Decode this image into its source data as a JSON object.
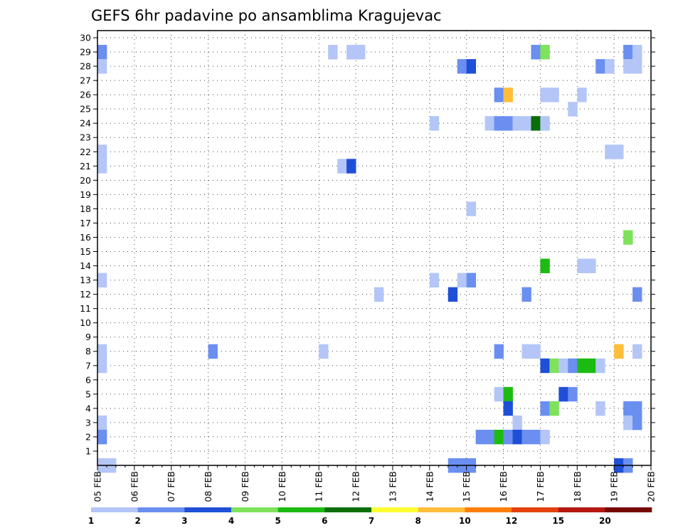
{
  "chart_data": {
    "type": "heatmap",
    "title": "GEFS 6hr padavine po ansamblima Kragujevac",
    "x_tick_labels": [
      "05 FEB",
      "06 FEB",
      "07 FEB",
      "08 FEB",
      "09 FEB",
      "10 FEB",
      "11 FEB",
      "12 FEB",
      "13 FEB",
      "14 FEB",
      "15 FEB",
      "16 FEB",
      "17 FEB",
      "18 FEB",
      "19 FEB",
      "20 FEB"
    ],
    "x_start": "2025-02-05T00",
    "x_step_hours": 6,
    "ylim": [
      0,
      30
    ],
    "y_ticks": [
      1,
      2,
      3,
      4,
      5,
      6,
      7,
      8,
      9,
      10,
      11,
      12,
      13,
      14,
      15,
      16,
      17,
      18,
      19,
      20,
      21,
      22,
      23,
      24,
      25,
      26,
      27,
      28,
      29,
      30
    ],
    "grid": true,
    "colorbar": {
      "levels": [
        "1",
        "2",
        "3",
        "4",
        "5",
        "6",
        "7",
        "8",
        "10",
        "12",
        "15",
        "20"
      ],
      "colors": [
        "#b4c6f7",
        "#6a8ff0",
        "#1f4fd6",
        "#7ee25a",
        "#1dbb12",
        "#0b6e08",
        "#ffff32",
        "#ffbe3a",
        "#ff7e0b",
        "#e5410f",
        "#b41810",
        "#760705"
      ]
    },
    "cells": [
      [
        "2025-02-05T00",
        29,
        1
      ],
      [
        "2025-02-05T00",
        28,
        0
      ],
      [
        "2025-02-05T00",
        22,
        0
      ],
      [
        "2025-02-05T00",
        21,
        0
      ],
      [
        "2025-02-05T00",
        13,
        0
      ],
      [
        "2025-02-05T00",
        8,
        0
      ],
      [
        "2025-02-05T00",
        7,
        0
      ],
      [
        "2025-02-05T00",
        3,
        0
      ],
      [
        "2025-02-05T00",
        2,
        1
      ],
      [
        "2025-02-05T00",
        0,
        0
      ],
      [
        "2025-02-05T06",
        0,
        0
      ],
      [
        "2025-02-08T00",
        8,
        1
      ],
      [
        "2025-02-11T00",
        8,
        0
      ],
      [
        "2025-02-11T06",
        29,
        0
      ],
      [
        "2025-02-11T12",
        21,
        0
      ],
      [
        "2025-02-11T18",
        29,
        0
      ],
      [
        "2025-02-11T18",
        21,
        2
      ],
      [
        "2025-02-12T00",
        29,
        0
      ],
      [
        "2025-02-12T12",
        12,
        0
      ],
      [
        "2025-02-14T00",
        24,
        0
      ],
      [
        "2025-02-14T00",
        13,
        0
      ],
      [
        "2025-02-14T12",
        12,
        2
      ],
      [
        "2025-02-14T12",
        0,
        1
      ],
      [
        "2025-02-14T18",
        28,
        1
      ],
      [
        "2025-02-14T18",
        13,
        0
      ],
      [
        "2025-02-14T18",
        0,
        1
      ],
      [
        "2025-02-15T00",
        28,
        2
      ],
      [
        "2025-02-15T00",
        18,
        0
      ],
      [
        "2025-02-15T00",
        13,
        1
      ],
      [
        "2025-02-15T00",
        0,
        1
      ],
      [
        "2025-02-15T06",
        2,
        1
      ],
      [
        "2025-02-15T12",
        24,
        0
      ],
      [
        "2025-02-15T12",
        2,
        1
      ],
      [
        "2025-02-15T18",
        26,
        1
      ],
      [
        "2025-02-15T18",
        24,
        1
      ],
      [
        "2025-02-15T18",
        8,
        1
      ],
      [
        "2025-02-15T18",
        5,
        0
      ],
      [
        "2025-02-15T18",
        2,
        4
      ],
      [
        "2025-02-16T00",
        26,
        7
      ],
      [
        "2025-02-16T00",
        24,
        1
      ],
      [
        "2025-02-16T00",
        5,
        4
      ],
      [
        "2025-02-16T00",
        4,
        2
      ],
      [
        "2025-02-16T00",
        2,
        1
      ],
      [
        "2025-02-16T06",
        24,
        0
      ],
      [
        "2025-02-16T06",
        3,
        0
      ],
      [
        "2025-02-16T06",
        2,
        2
      ],
      [
        "2025-02-16T12",
        24,
        0
      ],
      [
        "2025-02-16T12",
        12,
        1
      ],
      [
        "2025-02-16T12",
        8,
        0
      ],
      [
        "2025-02-16T12",
        2,
        1
      ],
      [
        "2025-02-16T18",
        29,
        1
      ],
      [
        "2025-02-16T18",
        24,
        5
      ],
      [
        "2025-02-16T18",
        8,
        0
      ],
      [
        "2025-02-16T18",
        2,
        1
      ],
      [
        "2025-02-17T00",
        29,
        3
      ],
      [
        "2025-02-17T00",
        26,
        0
      ],
      [
        "2025-02-17T00",
        24,
        0
      ],
      [
        "2025-02-17T00",
        14,
        4
      ],
      [
        "2025-02-17T00",
        7,
        2
      ],
      [
        "2025-02-17T00",
        4,
        1
      ],
      [
        "2025-02-17T00",
        2,
        0
      ],
      [
        "2025-02-17T06",
        26,
        0
      ],
      [
        "2025-02-17T06",
        7,
        3
      ],
      [
        "2025-02-17T06",
        4,
        3
      ],
      [
        "2025-02-17T12",
        7,
        0
      ],
      [
        "2025-02-17T12",
        5,
        2
      ],
      [
        "2025-02-17T18",
        25,
        0
      ],
      [
        "2025-02-17T18",
        7,
        1
      ],
      [
        "2025-02-17T18",
        5,
        1
      ],
      [
        "2025-02-18T00",
        26,
        0
      ],
      [
        "2025-02-18T00",
        14,
        0
      ],
      [
        "2025-02-18T00",
        7,
        4
      ],
      [
        "2025-02-18T06",
        14,
        0
      ],
      [
        "2025-02-18T06",
        7,
        4
      ],
      [
        "2025-02-18T12",
        28,
        1
      ],
      [
        "2025-02-18T12",
        7,
        0
      ],
      [
        "2025-02-18T12",
        4,
        0
      ],
      [
        "2025-02-18T18",
        28,
        0
      ],
      [
        "2025-02-18T18",
        22,
        0
      ],
      [
        "2025-02-19T00",
        22,
        0
      ],
      [
        "2025-02-19T00",
        8,
        7
      ],
      [
        "2025-02-19T00",
        0,
        2
      ],
      [
        "2025-02-19T06",
        29,
        1
      ],
      [
        "2025-02-19T06",
        28,
        0
      ],
      [
        "2025-02-19T06",
        16,
        3
      ],
      [
        "2025-02-19T06",
        4,
        1
      ],
      [
        "2025-02-19T06",
        3,
        0
      ],
      [
        "2025-02-19T06",
        0,
        1
      ],
      [
        "2025-02-19T12",
        29,
        0
      ],
      [
        "2025-02-19T12",
        28,
        0
      ],
      [
        "2025-02-19T12",
        12,
        1
      ],
      [
        "2025-02-19T12",
        8,
        0
      ],
      [
        "2025-02-19T12",
        4,
        1
      ],
      [
        "2025-02-19T12",
        3,
        1
      ]
    ]
  }
}
